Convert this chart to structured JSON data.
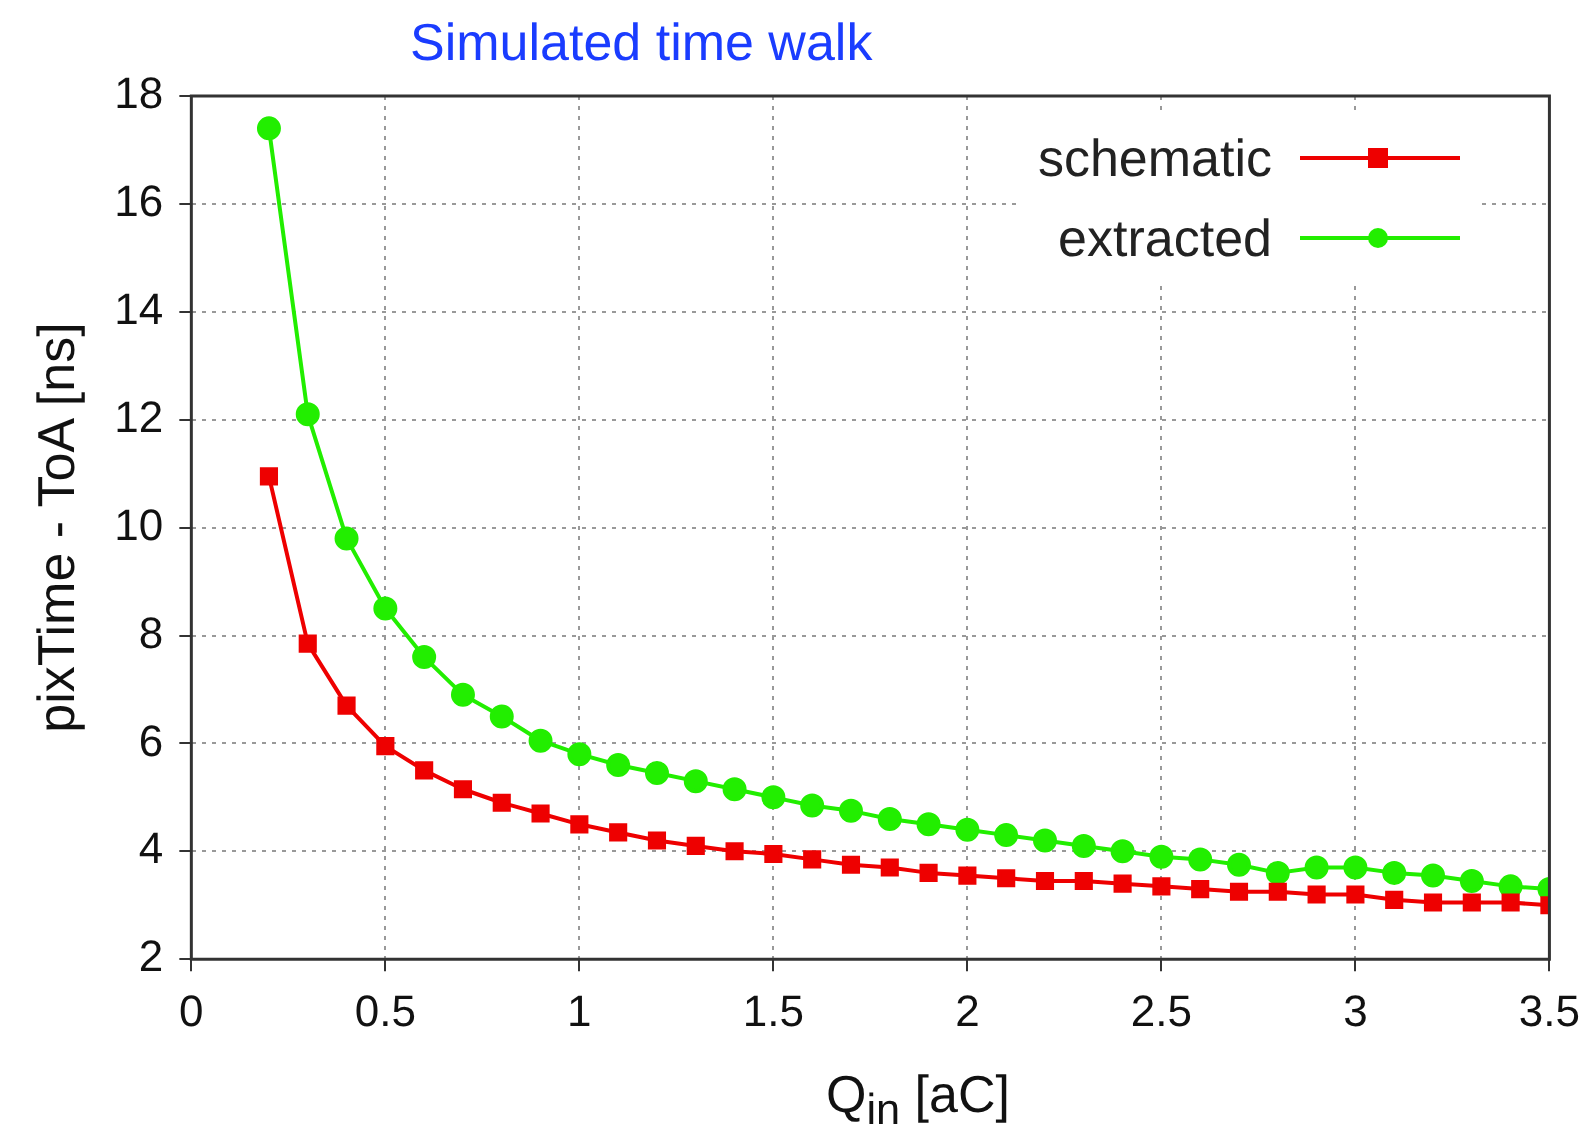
{
  "chart_data": {
    "type": "line",
    "title": "Simulated time walk",
    "xlabel": "Q$_{in}$ [aC]",
    "ylabel": "pixTime - ToA [ns]",
    "xlim": [
      0,
      3.5
    ],
    "xticks": [
      0,
      0.5,
      1,
      1.5,
      2,
      2.5,
      3,
      3.5
    ],
    "ylim": [
      2,
      18
    ],
    "yticks": [
      2,
      4,
      6,
      8,
      10,
      12,
      14,
      16,
      18
    ],
    "grid": true,
    "legend": "top right",
    "line_style": "solid",
    "x": [
      0.2,
      0.3,
      0.4,
      0.5,
      0.6,
      0.7,
      0.8,
      0.9,
      1.0,
      1.1,
      1.2,
      1.3,
      1.4,
      1.5,
      1.6,
      1.7,
      1.8,
      1.9,
      2.0,
      2.1,
      2.2,
      2.3,
      2.4,
      2.5,
      2.6,
      2.7,
      2.8,
      2.9,
      3.0,
      3.1,
      3.2,
      3.3,
      3.4,
      3.5
    ],
    "series": [
      {
        "name": "schematic",
        "color": "#ee0000",
        "marker": "square",
        "values": [
          10.95,
          7.85,
          6.7,
          5.95,
          5.5,
          5.15,
          4.9,
          4.7,
          4.5,
          4.35,
          4.2,
          4.1,
          4.0,
          3.95,
          3.85,
          3.75,
          3.7,
          3.6,
          3.55,
          3.5,
          3.45,
          3.45,
          3.4,
          3.35,
          3.3,
          3.25,
          3.25,
          3.2,
          3.2,
          3.1,
          3.05,
          3.05,
          3.05,
          3.0
        ]
      },
      {
        "name": "extracted",
        "color": "#22ee00",
        "marker": "circle",
        "values": [
          17.4,
          12.1,
          9.8,
          8.5,
          7.6,
          6.9,
          6.5,
          6.05,
          5.8,
          5.6,
          5.45,
          5.3,
          5.15,
          5.0,
          4.85,
          4.75,
          4.6,
          4.5,
          4.4,
          4.3,
          4.2,
          4.1,
          4.0,
          3.9,
          3.85,
          3.75,
          3.6,
          3.7,
          3.7,
          3.6,
          3.55,
          3.45,
          3.35,
          3.3
        ]
      }
    ]
  }
}
